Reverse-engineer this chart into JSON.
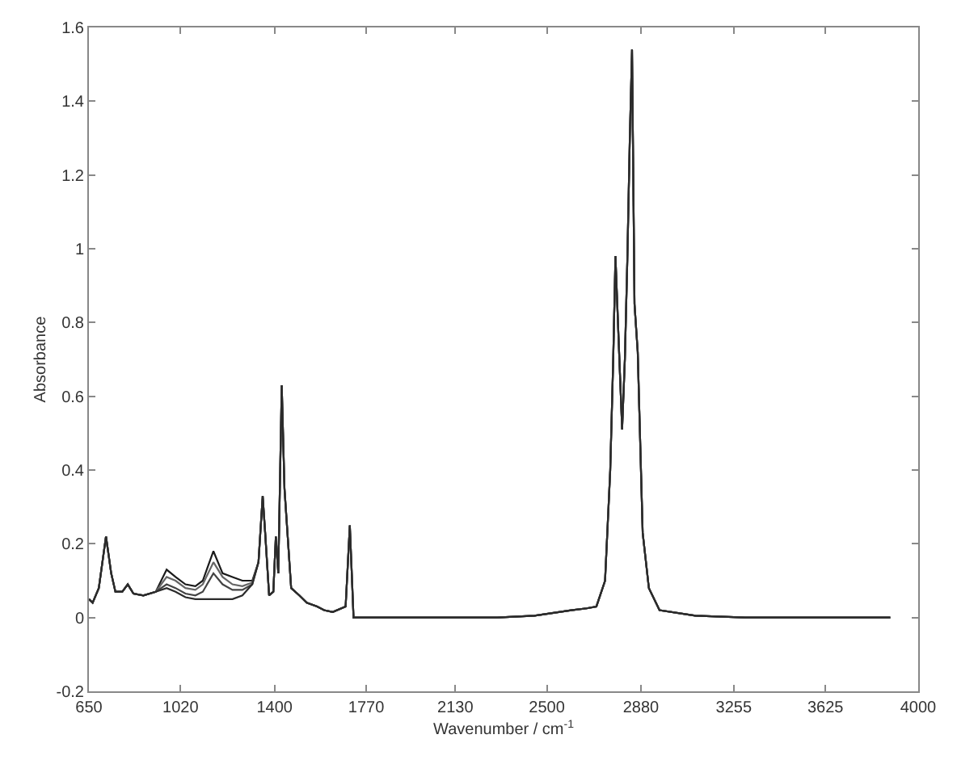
{
  "chart_data": {
    "type": "line",
    "xlabel": "Wavenumber / cm$^{-1}$",
    "ylabel": "Absorbance",
    "x": [
      650,
      665,
      690,
      719,
      740,
      757,
      785,
      807,
      830,
      870,
      920,
      964,
      1000,
      1040,
      1080,
      1110,
      1153,
      1190,
      1230,
      1270,
      1310,
      1335,
      1352,
      1362,
      1378,
      1395,
      1405,
      1415,
      1429,
      1440,
      1467,
      1500,
      1530,
      1572,
      1600,
      1635,
      1687,
      1704,
      1719,
      1740,
      1900,
      2100,
      2300,
      2450,
      2598,
      2661,
      2700,
      2735,
      2756,
      2768,
      2777,
      2790,
      2804,
      2815,
      2825,
      2835,
      2844,
      2854,
      2867,
      2887,
      2912,
      2955,
      3100,
      3300,
      3500,
      3700,
      3887
    ],
    "series": [
      {
        "color": "#1a1a1a",
        "values": [
          0.05,
          0.04,
          0.08,
          0.22,
          0.12,
          0.07,
          0.07,
          0.09,
          0.065,
          0.06,
          0.07,
          0.13,
          0.11,
          0.09,
          0.085,
          0.1,
          0.18,
          0.12,
          0.11,
          0.1,
          0.1,
          0.15,
          0.33,
          0.23,
          0.06,
          0.07,
          0.22,
          0.12,
          0.63,
          0.35,
          0.08,
          0.06,
          0.04,
          0.03,
          0.02,
          0.015,
          0.03,
          0.25,
          0.0,
          0.0,
          0.0,
          0.0,
          0.0,
          0.005,
          0.02,
          0.025,
          0.03,
          0.1,
          0.4,
          0.7,
          0.98,
          0.75,
          0.51,
          0.7,
          0.97,
          1.3,
          1.54,
          0.85,
          0.72,
          0.23,
          0.08,
          0.02,
          0.005,
          0.0,
          0.0,
          0.0,
          0.0
        ]
      },
      {
        "color": "#666666",
        "values": [
          0.05,
          0.04,
          0.08,
          0.22,
          0.12,
          0.07,
          0.07,
          0.09,
          0.065,
          0.06,
          0.07,
          0.11,
          0.1,
          0.08,
          0.075,
          0.09,
          0.15,
          0.11,
          0.09,
          0.085,
          0.095,
          0.15,
          0.33,
          0.23,
          0.06,
          0.07,
          0.22,
          0.12,
          0.63,
          0.35,
          0.08,
          0.06,
          0.04,
          0.03,
          0.02,
          0.015,
          0.03,
          0.25,
          0.0,
          0.0,
          0.0,
          0.0,
          0.0,
          0.005,
          0.02,
          0.025,
          0.03,
          0.1,
          0.4,
          0.7,
          0.98,
          0.75,
          0.51,
          0.7,
          0.97,
          1.3,
          1.54,
          0.85,
          0.72,
          0.23,
          0.08,
          0.02,
          0.005,
          0.0,
          0.0,
          0.0,
          0.0
        ]
      },
      {
        "color": "#444444",
        "values": [
          0.05,
          0.04,
          0.08,
          0.22,
          0.12,
          0.07,
          0.07,
          0.09,
          0.065,
          0.06,
          0.07,
          0.09,
          0.08,
          0.065,
          0.06,
          0.07,
          0.12,
          0.09,
          0.075,
          0.075,
          0.09,
          0.15,
          0.33,
          0.23,
          0.06,
          0.07,
          0.22,
          0.12,
          0.63,
          0.35,
          0.08,
          0.06,
          0.04,
          0.03,
          0.02,
          0.015,
          0.03,
          0.25,
          0.0,
          0.0,
          0.0,
          0.0,
          0.0,
          0.005,
          0.02,
          0.025,
          0.03,
          0.1,
          0.4,
          0.7,
          0.98,
          0.75,
          0.51,
          0.7,
          0.97,
          1.3,
          1.54,
          0.85,
          0.72,
          0.23,
          0.08,
          0.02,
          0.005,
          0.0,
          0.0,
          0.0,
          0.0
        ]
      },
      {
        "color": "#2b2b2b",
        "values": [
          0.05,
          0.04,
          0.08,
          0.22,
          0.12,
          0.07,
          0.07,
          0.09,
          0.065,
          0.06,
          0.07,
          0.08,
          0.07,
          0.055,
          0.05,
          0.05,
          0.05,
          0.05,
          0.05,
          0.06,
          0.09,
          0.15,
          0.33,
          0.23,
          0.06,
          0.07,
          0.22,
          0.12,
          0.63,
          0.35,
          0.08,
          0.06,
          0.04,
          0.03,
          0.02,
          0.015,
          0.03,
          0.25,
          0.0,
          0.0,
          0.0,
          0.0,
          0.0,
          0.005,
          0.02,
          0.025,
          0.03,
          0.1,
          0.4,
          0.7,
          0.98,
          0.75,
          0.51,
          0.7,
          0.97,
          1.3,
          1.54,
          0.85,
          0.72,
          0.23,
          0.08,
          0.02,
          0.005,
          0.0,
          0.0,
          0.0,
          0.0
        ]
      }
    ],
    "xlim": [
      650,
      4000
    ],
    "xticks": [
      650,
      1020,
      1400,
      1770,
      2130,
      2500,
      2880,
      3255,
      3625,
      4000
    ],
    "ylim": [
      -0.2,
      1.6
    ],
    "yticks": [
      -0.2,
      0,
      0.2,
      0.4,
      0.6,
      0.8,
      1,
      1.2,
      1.4,
      1.6
    ],
    "marker": "none",
    "line_style": "solid"
  }
}
